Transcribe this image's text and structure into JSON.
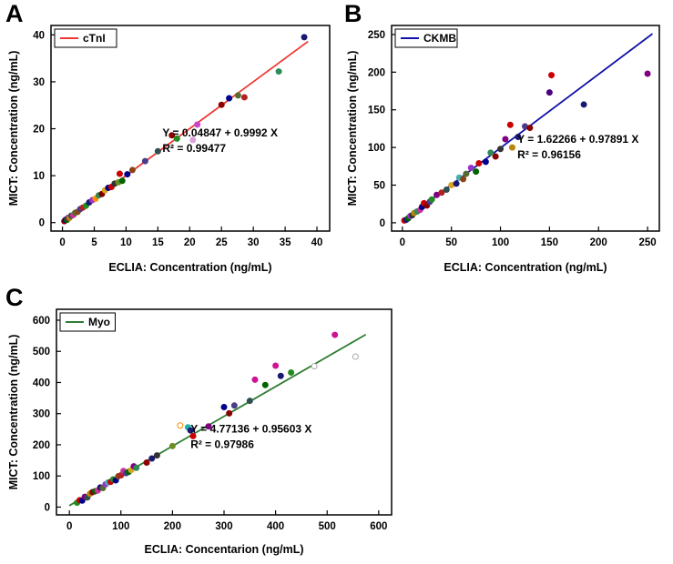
{
  "chart_data": [
    {
      "panel_label": "A",
      "type": "scatter",
      "legend": "cTnI",
      "line_color": "#ed3833",
      "xlabel": "ECLIA: Concentration (ng/mL)",
      "ylabel": "MICT: Concentration (ng/mL)",
      "equation": "Y = 0.04847 + 0.9992 X",
      "r2": "R² = 0.99477",
      "xlim": [
        -1.8,
        42
      ],
      "ylim": [
        -1.8,
        42
      ],
      "xticks": [
        0,
        5,
        10,
        15,
        20,
        25,
        30,
        35,
        40
      ],
      "yticks": [
        0,
        10,
        20,
        30,
        40
      ],
      "line": [
        0,
        0.05,
        38.6,
        38.6
      ],
      "points": [
        [
          0.3,
          0.3,
          "#8b0000"
        ],
        [
          0.5,
          0.6,
          "#00008b"
        ],
        [
          0.7,
          0.6,
          "#006400"
        ],
        [
          0.9,
          1.0,
          "#800080"
        ],
        [
          1.1,
          1.0,
          "#b8860b"
        ],
        [
          1.4,
          1.5,
          "#2f4f4f"
        ],
        [
          1.7,
          1.6,
          "#cc3399"
        ],
        [
          2.0,
          2.1,
          "#556b2f"
        ],
        [
          2.4,
          2.3,
          "#8b4513"
        ],
        [
          2.8,
          2.9,
          "#483d8b"
        ],
        [
          3.2,
          3.2,
          "#b22222"
        ],
        [
          3.7,
          3.6,
          "#228b22"
        ],
        [
          4.2,
          4.3,
          "#191970"
        ],
        [
          4.7,
          4.8,
          "#9932cc"
        ],
        [
          5.2,
          5.1,
          "#ff8c00"
        ],
        [
          5.7,
          5.8,
          "#2e8b57"
        ],
        [
          6.2,
          6.1,
          "#800000"
        ],
        [
          6.7,
          6.9,
          "#daa520"
        ],
        [
          7.2,
          7.4,
          "#00008b"
        ],
        [
          7.7,
          7.6,
          "#cc0000"
        ],
        [
          8.2,
          8.3,
          "#333333"
        ],
        [
          8.8,
          8.6,
          "#6b8e23"
        ],
        [
          9.0,
          10.4,
          "#cc0000"
        ],
        [
          9.4,
          8.9,
          "#006400"
        ],
        [
          10.2,
          10.3,
          "#00008b"
        ],
        [
          11.0,
          11.2,
          "#8b4513"
        ],
        [
          13.0,
          13.1,
          "#483d8b"
        ],
        [
          15.0,
          15.2,
          "#2f4f4f"
        ],
        [
          17.2,
          18.6,
          "#8b0000"
        ],
        [
          18.0,
          17.9,
          "#228b22"
        ],
        [
          20.5,
          17.6,
          "#dda0dd"
        ],
        [
          21.2,
          20.9,
          "#cc44cc"
        ],
        [
          25.0,
          25.1,
          "#8b0000"
        ],
        [
          26.2,
          26.5,
          "#00008b"
        ],
        [
          27.6,
          27.1,
          "#556b2f"
        ],
        [
          28.6,
          26.7,
          "#b22222"
        ],
        [
          34.0,
          32.2,
          "#2e8b57"
        ],
        [
          38.0,
          39.5,
          "#191970"
        ]
      ]
    },
    {
      "panel_label": "B",
      "type": "scatter",
      "legend": "CKMB",
      "line_color": "#1111aa",
      "xlabel": "ECLIA: Concentration (ng/mL)",
      "ylabel": "MICT: Concentration (ng/mL)",
      "equation": "Y = 1.62266 + 0.97891 X",
      "r2": "R² = 0.96156",
      "xlim": [
        -11,
        262
      ],
      "ylim": [
        -11,
        262
      ],
      "xticks": [
        0,
        50,
        100,
        150,
        200,
        250
      ],
      "yticks": [
        0,
        50,
        100,
        150,
        200,
        250
      ],
      "line": [
        0,
        1.6,
        255,
        251
      ],
      "points": [
        [
          2,
          3,
          "#cc0000"
        ],
        [
          4,
          4,
          "#191970"
        ],
        [
          6,
          6,
          "#006400"
        ],
        [
          8,
          9,
          "#9932cc"
        ],
        [
          10,
          10,
          "#333333"
        ],
        [
          12,
          13,
          "#b8860b"
        ],
        [
          15,
          15,
          "#2e8b57"
        ],
        [
          18,
          17,
          "#cc3399"
        ],
        [
          20,
          21,
          "#00008b"
        ],
        [
          22,
          26,
          "#cc0000"
        ],
        [
          25,
          23,
          "#8b0000"
        ],
        [
          28,
          28,
          "#483d8b"
        ],
        [
          30,
          31,
          "#228b22"
        ],
        [
          35,
          37,
          "#800080"
        ],
        [
          40,
          40,
          "#b22222"
        ],
        [
          45,
          44,
          "#2f4f4f"
        ],
        [
          50,
          50,
          "#daa520"
        ],
        [
          55,
          52,
          "#191970"
        ],
        [
          58,
          60,
          "#40b0b0"
        ],
        [
          62,
          58,
          "#8b4513"
        ],
        [
          65,
          65,
          "#556b2f"
        ],
        [
          70,
          73,
          "#9932cc"
        ],
        [
          75,
          68,
          "#006400"
        ],
        [
          78,
          79,
          "#cc0000"
        ],
        [
          85,
          81,
          "#00008b"
        ],
        [
          90,
          93,
          "#2e8b57"
        ],
        [
          95,
          88,
          "#8b0000"
        ],
        [
          100,
          98,
          "#333333"
        ],
        [
          105,
          111,
          "#800080"
        ],
        [
          110,
          130,
          "#cc0000"
        ],
        [
          112,
          100,
          "#b8860b"
        ],
        [
          118,
          114,
          "#191970"
        ],
        [
          125,
          128,
          "#483d8b"
        ],
        [
          130,
          126,
          "#8b0000"
        ],
        [
          150,
          173,
          "#4b0082"
        ],
        [
          152,
          196,
          "#cc0000"
        ],
        [
          185,
          157,
          "#191970"
        ],
        [
          250,
          198,
          "#800080"
        ]
      ]
    },
    {
      "panel_label": "C",
      "type": "scatter",
      "legend": "Myo",
      "line_color": "#2e7d32",
      "xlabel": "ECLIA: Concentarion (ng/mL)",
      "ylabel": "MICT: Concentration (ng/mL)",
      "equation": "Y = 4.77136 + 0.95603 X",
      "r2": "R² = 0.97986",
      "xlim": [
        -25,
        625
      ],
      "ylim": [
        -25,
        635
      ],
      "xticks": [
        0,
        100,
        200,
        300,
        400,
        500,
        600
      ],
      "yticks": [
        0,
        100,
        200,
        300,
        400,
        500,
        600
      ],
      "line": [
        0,
        4.8,
        575,
        554
      ],
      "points": [
        [
          15,
          14,
          "#228b22"
        ],
        [
          20,
          22,
          "#cc0000"
        ],
        [
          25,
          21,
          "#00008b"
        ],
        [
          30,
          33,
          "#800080"
        ],
        [
          35,
          31,
          "#2f4f4f"
        ],
        [
          40,
          43,
          "#b8860b"
        ],
        [
          45,
          48,
          "#8b0000"
        ],
        [
          50,
          51,
          "#006400"
        ],
        [
          55,
          53,
          "#cc3399"
        ],
        [
          60,
          63,
          "#191970"
        ],
        [
          65,
          61,
          "#556b2f"
        ],
        [
          70,
          73,
          "#9932cc"
        ],
        [
          75,
          79,
          "#40b0b0"
        ],
        [
          80,
          81,
          "#cc0000"
        ],
        [
          85,
          89,
          "#228b22"
        ],
        [
          90,
          86,
          "#00008b"
        ],
        [
          95,
          99,
          "#8b4513"
        ],
        [
          100,
          102,
          "#b22222"
        ],
        [
          105,
          116,
          "#cc3399"
        ],
        [
          110,
          109,
          "#483d8b"
        ],
        [
          115,
          113,
          "#006400"
        ],
        [
          120,
          119,
          "#daa520"
        ],
        [
          125,
          131,
          "#800080"
        ],
        [
          130,
          126,
          "#2e8b57"
        ],
        [
          150,
          143,
          "#8b0000"
        ],
        [
          160,
          156,
          "#191970"
        ],
        [
          170,
          166,
          "#333333"
        ],
        [
          200,
          196,
          "#6b8e23"
        ],
        [
          215,
          262,
          "#ff8c00",
          "o"
        ],
        [
          230,
          256,
          "#20b2aa"
        ],
        [
          235,
          246,
          "#191970"
        ],
        [
          240,
          228,
          "#cc0000"
        ],
        [
          270,
          259,
          "#800080"
        ],
        [
          300,
          321,
          "#00008b"
        ],
        [
          310,
          301,
          "#8b0000"
        ],
        [
          320,
          326,
          "#483d8b"
        ],
        [
          350,
          341,
          "#2f4f4f"
        ],
        [
          360,
          409,
          "#cc1493"
        ],
        [
          380,
          392,
          "#006400"
        ],
        [
          400,
          454,
          "#cc1493"
        ],
        [
          410,
          421,
          "#191970"
        ],
        [
          430,
          432,
          "#228b22"
        ],
        [
          475,
          452,
          "#aaaaaa",
          "o"
        ],
        [
          515,
          553,
          "#cc1493"
        ],
        [
          555,
          483,
          "#aaaaaa",
          "o"
        ]
      ]
    }
  ]
}
